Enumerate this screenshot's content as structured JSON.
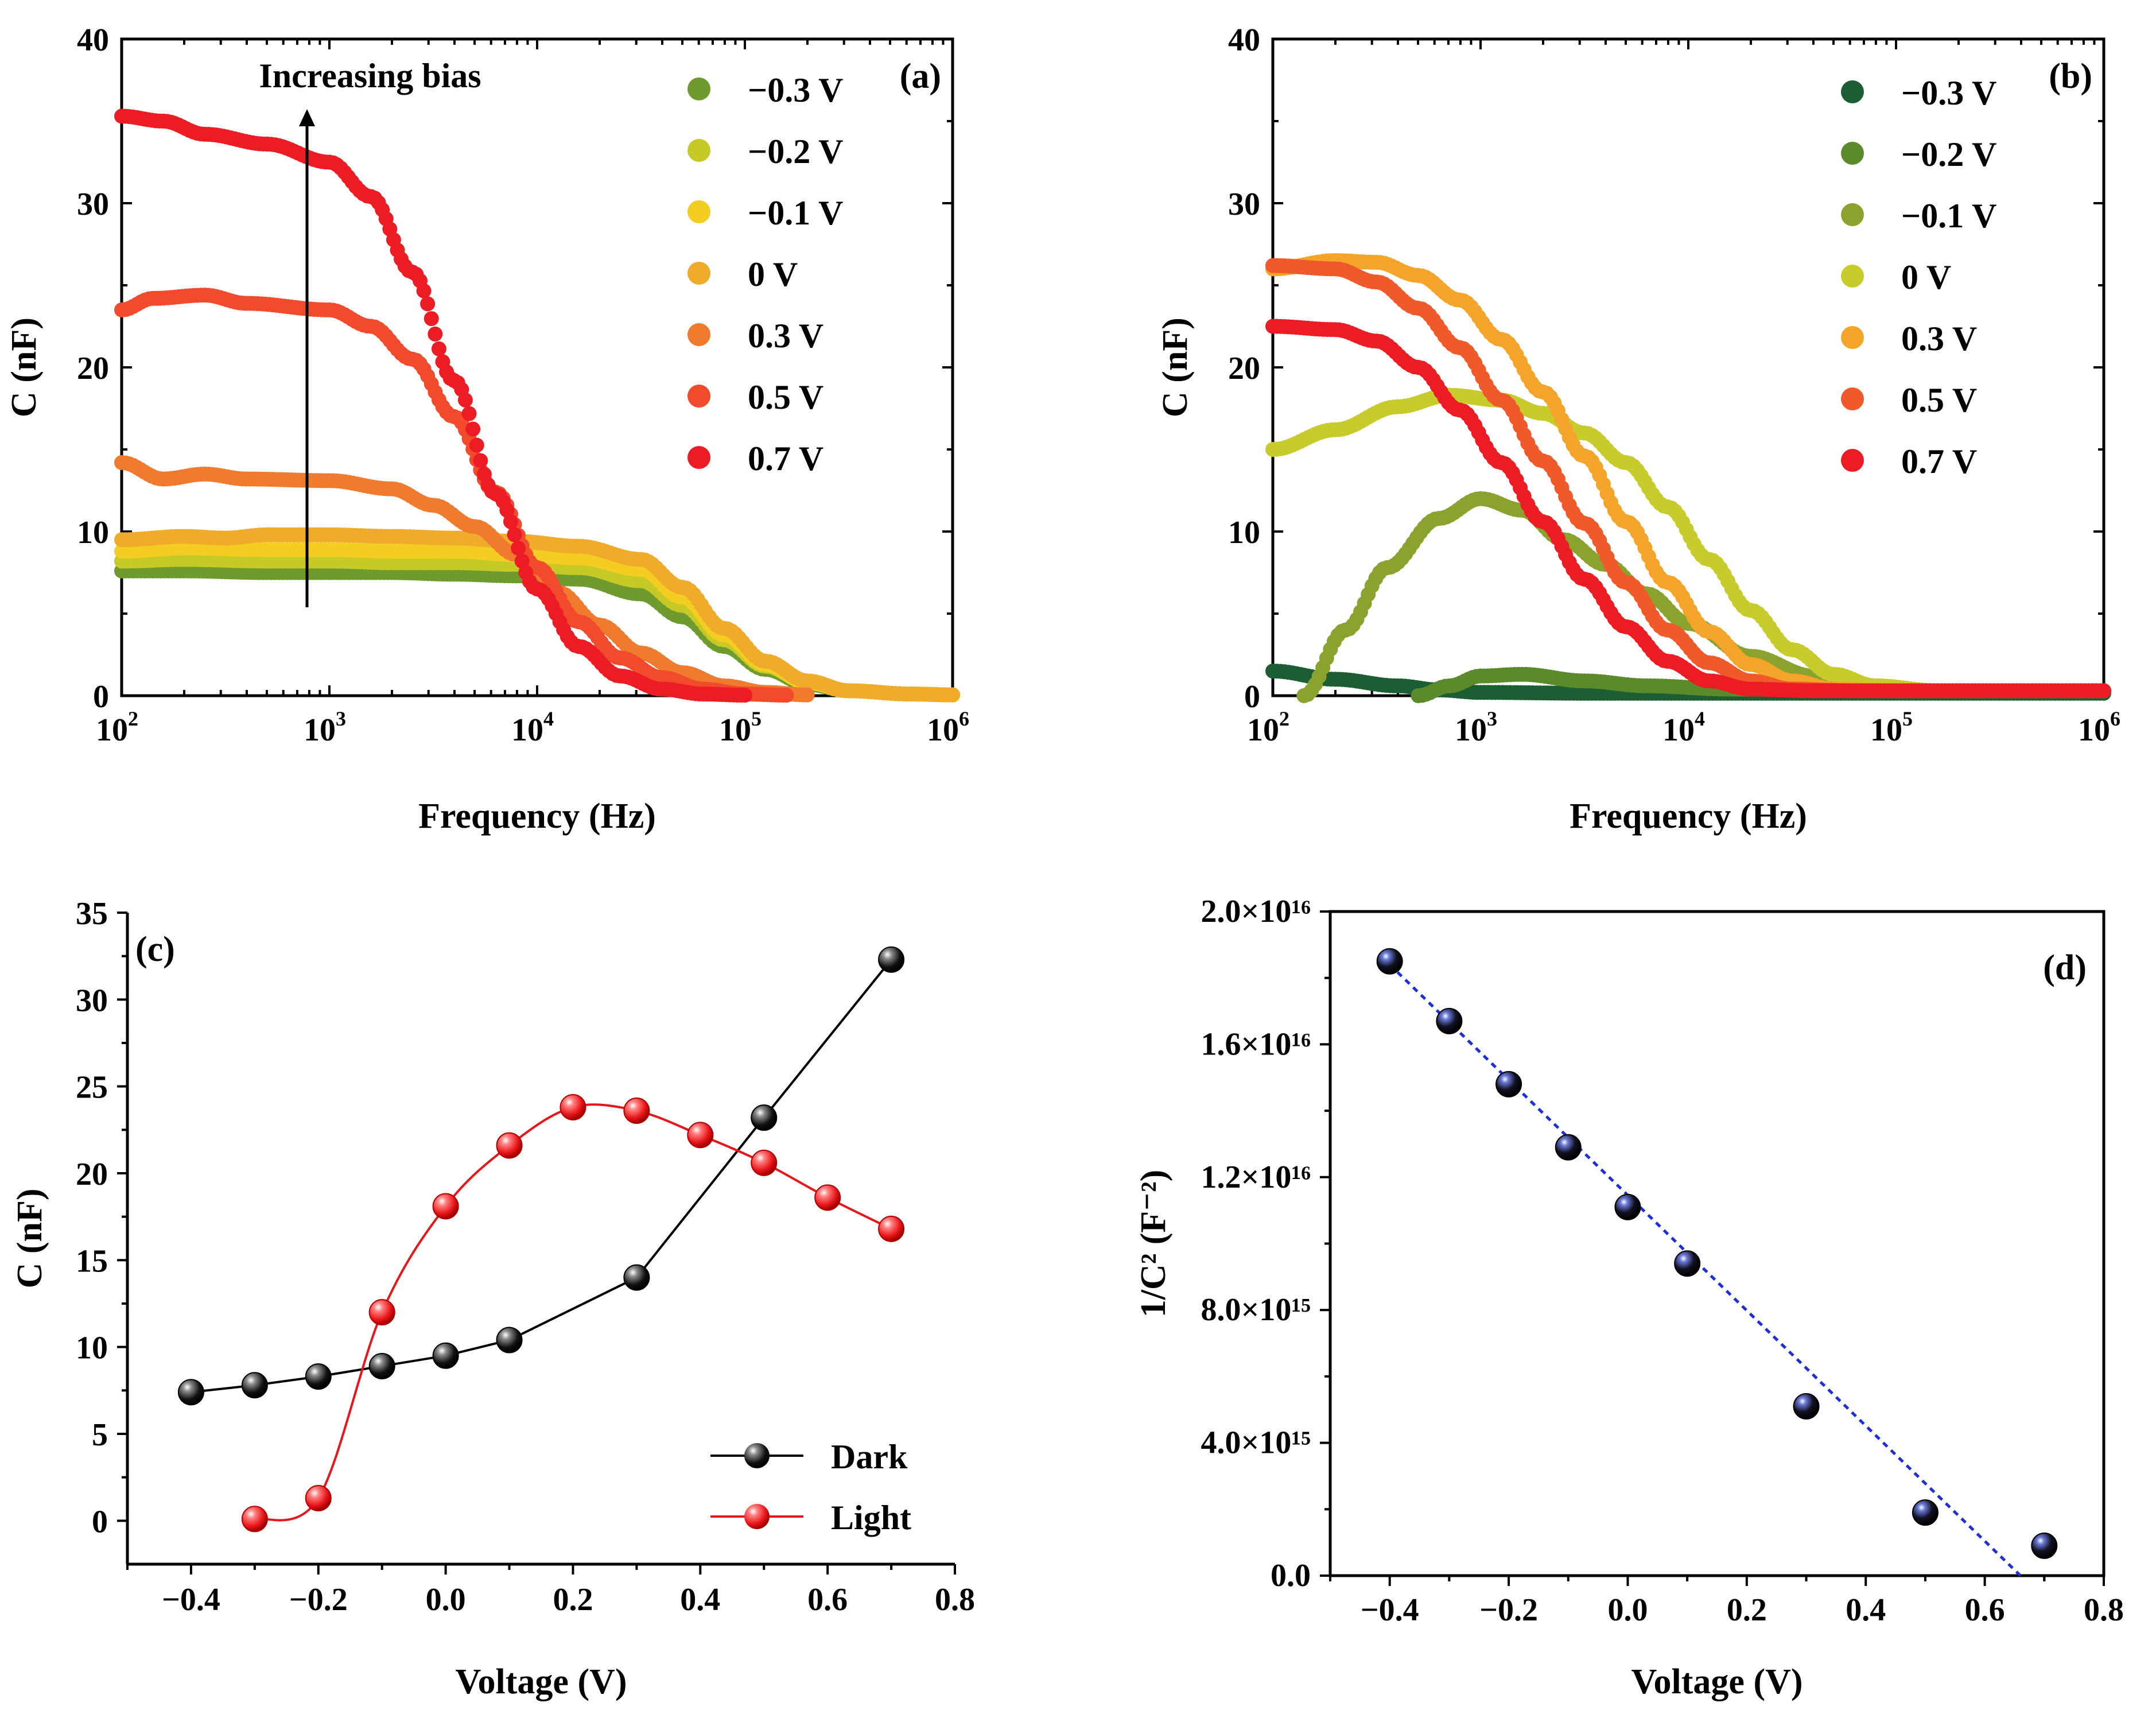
{
  "colors": {
    "black": "#000000",
    "dark_line": "#000000",
    "light_line": "#e8161a",
    "fit_line": "#1f2fd6"
  },
  "chart_data": [
    {
      "panel": "a",
      "panel_label": "(a)",
      "type": "scatter",
      "xscale": "log",
      "xlim": [
        100,
        1000000
      ],
      "ylim": [
        0,
        40
      ],
      "xlabel": "Frequency (Hz)",
      "ylabel": "C (nF)",
      "x_tick_base": "10",
      "x_tick_exponents": [
        "2",
        "3",
        "4",
        "5",
        "6"
      ],
      "y_ticks": [
        "0",
        "10",
        "20",
        "30",
        "40"
      ],
      "annotation": "Increasing bias",
      "legend_position": "top-right",
      "series": [
        {
          "name": "−0.3 V",
          "color": "#6f9a2e",
          "points": [
            [
              2.0,
              7.6
            ],
            [
              2.3,
              7.6
            ],
            [
              2.7,
              7.5
            ],
            [
              3.0,
              7.5
            ],
            [
              3.3,
              7.5
            ],
            [
              3.6,
              7.4
            ],
            [
              3.9,
              7.3
            ],
            [
              4.2,
              7.1
            ],
            [
              4.5,
              6.2
            ],
            [
              4.7,
              4.8
            ],
            [
              4.9,
              3.0
            ],
            [
              5.1,
              1.6
            ],
            [
              5.3,
              0.7
            ],
            [
              5.5,
              0.3
            ],
            [
              5.8,
              0.1
            ],
            [
              6.0,
              0.05
            ]
          ]
        },
        {
          "name": "−0.2 V",
          "color": "#c7c927",
          "points": [
            [
              2.0,
              8.2
            ],
            [
              2.3,
              8.3
            ],
            [
              2.7,
              8.2
            ],
            [
              3.0,
              8.2
            ],
            [
              3.3,
              8.1
            ],
            [
              3.6,
              8.1
            ],
            [
              3.9,
              8.0
            ],
            [
              4.2,
              7.8
            ],
            [
              4.5,
              7.0
            ],
            [
              4.7,
              5.5
            ],
            [
              4.9,
              3.4
            ],
            [
              5.1,
              1.8
            ],
            [
              5.3,
              0.8
            ],
            [
              5.5,
              0.3
            ],
            [
              5.8,
              0.1
            ],
            [
              6.0,
              0.05
            ]
          ]
        },
        {
          "name": "−0.1 V",
          "color": "#f3cd22",
          "points": [
            [
              2.0,
              8.8
            ],
            [
              2.3,
              9.0
            ],
            [
              2.7,
              8.9
            ],
            [
              3.0,
              8.9
            ],
            [
              3.3,
              8.8
            ],
            [
              3.6,
              8.8
            ],
            [
              3.9,
              8.6
            ],
            [
              4.2,
              8.4
            ],
            [
              4.5,
              7.7
            ],
            [
              4.7,
              6.0
            ],
            [
              4.9,
              3.7
            ],
            [
              5.1,
              1.9
            ],
            [
              5.3,
              0.8
            ],
            [
              5.5,
              0.3
            ],
            [
              5.8,
              0.1
            ],
            [
              6.0,
              0.05
            ]
          ]
        },
        {
          "name": "0 V",
          "color": "#efab29",
          "points": [
            [
              2.0,
              9.5
            ],
            [
              2.3,
              9.7
            ],
            [
              2.5,
              9.6
            ],
            [
              2.7,
              9.8
            ],
            [
              3.0,
              9.8
            ],
            [
              3.3,
              9.7
            ],
            [
              3.6,
              9.6
            ],
            [
              3.9,
              9.4
            ],
            [
              4.2,
              9.1
            ],
            [
              4.5,
              8.3
            ],
            [
              4.7,
              6.6
            ],
            [
              4.9,
              4.1
            ],
            [
              5.1,
              2.1
            ],
            [
              5.3,
              0.9
            ],
            [
              5.5,
              0.3
            ],
            [
              5.8,
              0.1
            ],
            [
              6.0,
              0.05
            ]
          ]
        },
        {
          "name": "0.3 V",
          "color": "#f07a2d",
          "points": [
            [
              2.0,
              14.2
            ],
            [
              2.2,
              13.2
            ],
            [
              2.4,
              13.5
            ],
            [
              2.6,
              13.2
            ],
            [
              3.0,
              13.1
            ],
            [
              3.3,
              12.6
            ],
            [
              3.5,
              11.6
            ],
            [
              3.7,
              10.3
            ],
            [
              3.9,
              8.6
            ],
            [
              4.1,
              6.3
            ],
            [
              4.3,
              4.3
            ],
            [
              4.5,
              2.6
            ],
            [
              4.7,
              1.4
            ],
            [
              4.9,
              0.6
            ],
            [
              5.1,
              0.2
            ],
            [
              5.3,
              0.05
            ]
          ]
        },
        {
          "name": "0.5 V",
          "color": "#f24a2d",
          "points": [
            [
              2.0,
              23.5
            ],
            [
              2.15,
              24.2
            ],
            [
              2.4,
              24.4
            ],
            [
              2.6,
              23.9
            ],
            [
              3.0,
              23.5
            ],
            [
              3.2,
              22.5
            ],
            [
              3.4,
              20.5
            ],
            [
              3.6,
              17.0
            ],
            [
              3.8,
              12.4
            ],
            [
              4.0,
              7.8
            ],
            [
              4.2,
              4.5
            ],
            [
              4.4,
              2.3
            ],
            [
              4.6,
              1.1
            ],
            [
              4.8,
              0.4
            ],
            [
              5.0,
              0.1
            ],
            [
              5.2,
              0.03
            ]
          ]
        },
        {
          "name": "0.7 V",
          "color": "#ec1c24",
          "points": [
            [
              2.0,
              35.3
            ],
            [
              2.2,
              35.0
            ],
            [
              2.4,
              34.2
            ],
            [
              2.7,
              33.6
            ],
            [
              3.0,
              32.5
            ],
            [
              3.2,
              30.4
            ],
            [
              3.4,
              25.8
            ],
            [
              3.6,
              19.2
            ],
            [
              3.8,
              12.3
            ],
            [
              4.0,
              6.5
            ],
            [
              4.2,
              3.0
            ],
            [
              4.4,
              1.2
            ],
            [
              4.6,
              0.4
            ],
            [
              4.8,
              0.1
            ],
            [
              5.0,
              0.03
            ]
          ]
        }
      ]
    },
    {
      "panel": "b",
      "panel_label": "(b)",
      "type": "scatter",
      "xscale": "log",
      "xlim": [
        100,
        1000000
      ],
      "ylim": [
        0,
        40
      ],
      "xlabel": "Frequency (Hz)",
      "ylabel": "C (nF)",
      "x_tick_base": "10",
      "x_tick_exponents": [
        "2",
        "3",
        "4",
        "5",
        "6"
      ],
      "y_ticks": [
        "0",
        "10",
        "20",
        "30",
        "40"
      ],
      "legend_position": "top-right",
      "series": [
        {
          "name": "−0.3 V",
          "color": "#1b5e33",
          "points": [
            [
              2.0,
              1.5
            ],
            [
              2.3,
              1.0
            ],
            [
              2.6,
              0.6
            ],
            [
              2.8,
              0.35
            ],
            [
              3.0,
              0.2
            ],
            [
              3.5,
              0.15
            ],
            [
              4.5,
              0.15
            ],
            [
              6.0,
              0.15
            ]
          ]
        },
        {
          "name": "−0.2 V",
          "color": "#5b8a2a",
          "points": [
            [
              2.7,
              0.0
            ],
            [
              2.85,
              0.6
            ],
            [
              3.0,
              1.2
            ],
            [
              3.2,
              1.3
            ],
            [
              3.5,
              0.9
            ],
            [
              3.8,
              0.6
            ],
            [
              4.2,
              0.4
            ],
            [
              5.0,
              0.3
            ],
            [
              6.0,
              0.3
            ]
          ]
        },
        {
          "name": "−0.1 V",
          "color": "#8aa22e",
          "points": [
            [
              2.15,
              0.0
            ],
            [
              2.35,
              4.0
            ],
            [
              2.55,
              7.8
            ],
            [
              2.8,
              10.8
            ],
            [
              3.0,
              12.0
            ],
            [
              3.2,
              11.3
            ],
            [
              3.4,
              9.5
            ],
            [
              3.6,
              8.0
            ],
            [
              3.8,
              6.2
            ],
            [
              4.0,
              4.4
            ],
            [
              4.3,
              2.4
            ],
            [
              4.6,
              1.2
            ],
            [
              4.9,
              0.5
            ],
            [
              5.2,
              0.3
            ],
            [
              6.0,
              0.3
            ]
          ]
        },
        {
          "name": "0 V",
          "color": "#c8cb2c",
          "points": [
            [
              2.0,
              15.0
            ],
            [
              2.3,
              16.2
            ],
            [
              2.6,
              17.6
            ],
            [
              2.85,
              18.3
            ],
            [
              3.1,
              18.0
            ],
            [
              3.3,
              17.2
            ],
            [
              3.5,
              16.0
            ],
            [
              3.7,
              14.2
            ],
            [
              3.9,
              11.5
            ],
            [
              4.1,
              8.3
            ],
            [
              4.3,
              5.2
            ],
            [
              4.5,
              2.8
            ],
            [
              4.7,
              1.3
            ],
            [
              4.9,
              0.6
            ],
            [
              5.2,
              0.3
            ],
            [
              6.0,
              0.3
            ]
          ]
        },
        {
          "name": "0.3 V",
          "color": "#f4a428",
          "points": [
            [
              2.0,
              26.0
            ],
            [
              2.3,
              26.5
            ],
            [
              2.5,
              26.4
            ],
            [
              2.7,
              25.6
            ],
            [
              2.9,
              24.1
            ],
            [
              3.1,
              21.7
            ],
            [
              3.3,
              18.5
            ],
            [
              3.5,
              14.6
            ],
            [
              3.7,
              10.6
            ],
            [
              3.9,
              6.9
            ],
            [
              4.1,
              3.9
            ],
            [
              4.3,
              1.9
            ],
            [
              4.5,
              0.9
            ],
            [
              4.7,
              0.4
            ],
            [
              5.0,
              0.3
            ],
            [
              6.0,
              0.3
            ]
          ]
        },
        {
          "name": "0.5 V",
          "color": "#f05a2b",
          "points": [
            [
              2.0,
              26.2
            ],
            [
              2.3,
              26.0
            ],
            [
              2.5,
              25.2
            ],
            [
              2.7,
              23.6
            ],
            [
              2.9,
              21.2
            ],
            [
              3.1,
              18.0
            ],
            [
              3.3,
              14.3
            ],
            [
              3.5,
              10.5
            ],
            [
              3.7,
              6.9
            ],
            [
              3.9,
              4.0
            ],
            [
              4.1,
              2.0
            ],
            [
              4.3,
              0.9
            ],
            [
              4.5,
              0.4
            ],
            [
              4.8,
              0.3
            ],
            [
              6.0,
              0.3
            ]
          ]
        },
        {
          "name": "0.7 V",
          "color": "#ec1c24",
          "points": [
            [
              2.0,
              22.5
            ],
            [
              2.3,
              22.3
            ],
            [
              2.5,
              21.6
            ],
            [
              2.7,
              20.0
            ],
            [
              2.9,
              17.4
            ],
            [
              3.1,
              14.2
            ],
            [
              3.3,
              10.6
            ],
            [
              3.5,
              7.1
            ],
            [
              3.7,
              4.2
            ],
            [
              3.9,
              2.1
            ],
            [
              4.1,
              0.9
            ],
            [
              4.3,
              0.4
            ],
            [
              4.6,
              0.3
            ],
            [
              6.0,
              0.3
            ]
          ]
        }
      ]
    },
    {
      "panel": "c",
      "panel_label": "(c)",
      "type": "line",
      "xlim": [
        -0.5,
        0.8
      ],
      "ylim": [
        -2.5,
        35
      ],
      "xlabel": "Voltage (V)",
      "ylabel": "C (nF)",
      "x_ticks": [
        "−0.4",
        "−0.2",
        "0.0",
        "0.2",
        "0.4",
        "0.6",
        "0.8"
      ],
      "y_ticks": [
        "0",
        "5",
        "10",
        "15",
        "20",
        "25",
        "30",
        "35"
      ],
      "legend_position": "bottom-right",
      "series": [
        {
          "name": "Dark",
          "color": "#000000",
          "x": [
            -0.4,
            -0.3,
            -0.2,
            -0.1,
            0.0,
            0.1,
            0.3,
            0.5,
            0.7
          ],
          "y": [
            7.4,
            7.8,
            8.3,
            8.9,
            9.5,
            10.4,
            14.0,
            23.2,
            32.3
          ]
        },
        {
          "name": "Light",
          "color": "#e8161a",
          "x": [
            -0.3,
            -0.2,
            -0.1,
            0.0,
            0.1,
            0.2,
            0.3,
            0.4,
            0.5,
            0.6,
            0.7
          ],
          "y": [
            0.1,
            1.3,
            12.0,
            18.1,
            21.6,
            23.8,
            23.6,
            22.2,
            20.6,
            18.6,
            16.8
          ]
        }
      ]
    },
    {
      "panel": "d",
      "panel_label": "(d)",
      "type": "scatter",
      "xlim": [
        -0.5,
        0.8
      ],
      "ylim": [
        0,
        2e+16
      ],
      "xlabel": "Voltage (V)",
      "ylabel": "1/C² (F⁻²)",
      "x_ticks": [
        "−0.4",
        "−0.2",
        "0.0",
        "0.2",
        "0.4",
        "0.6",
        "0.8"
      ],
      "y_ticks": [
        "0.0",
        "4.0×10¹⁵",
        "8.0×10¹⁵",
        "1.2×10¹⁶",
        "1.6×10¹⁶",
        "2.0×10¹⁶"
      ],
      "points_x": [
        -0.4,
        -0.3,
        -0.2,
        -0.1,
        0.0,
        0.1,
        0.3,
        0.5,
        0.7
      ],
      "points_y": [
        1.85e+16,
        1.67e+16,
        1.48e+16,
        1.29e+16,
        1.11e+16,
        9400000000000000.0,
        5100000000000000.0,
        1900000000000000.0,
        900000000000000.0
      ],
      "fit_line": {
        "x": [
          -0.4,
          0.66
        ],
        "y": [
          1.84e+16,
          0.0
        ],
        "style": "dotted"
      }
    }
  ]
}
